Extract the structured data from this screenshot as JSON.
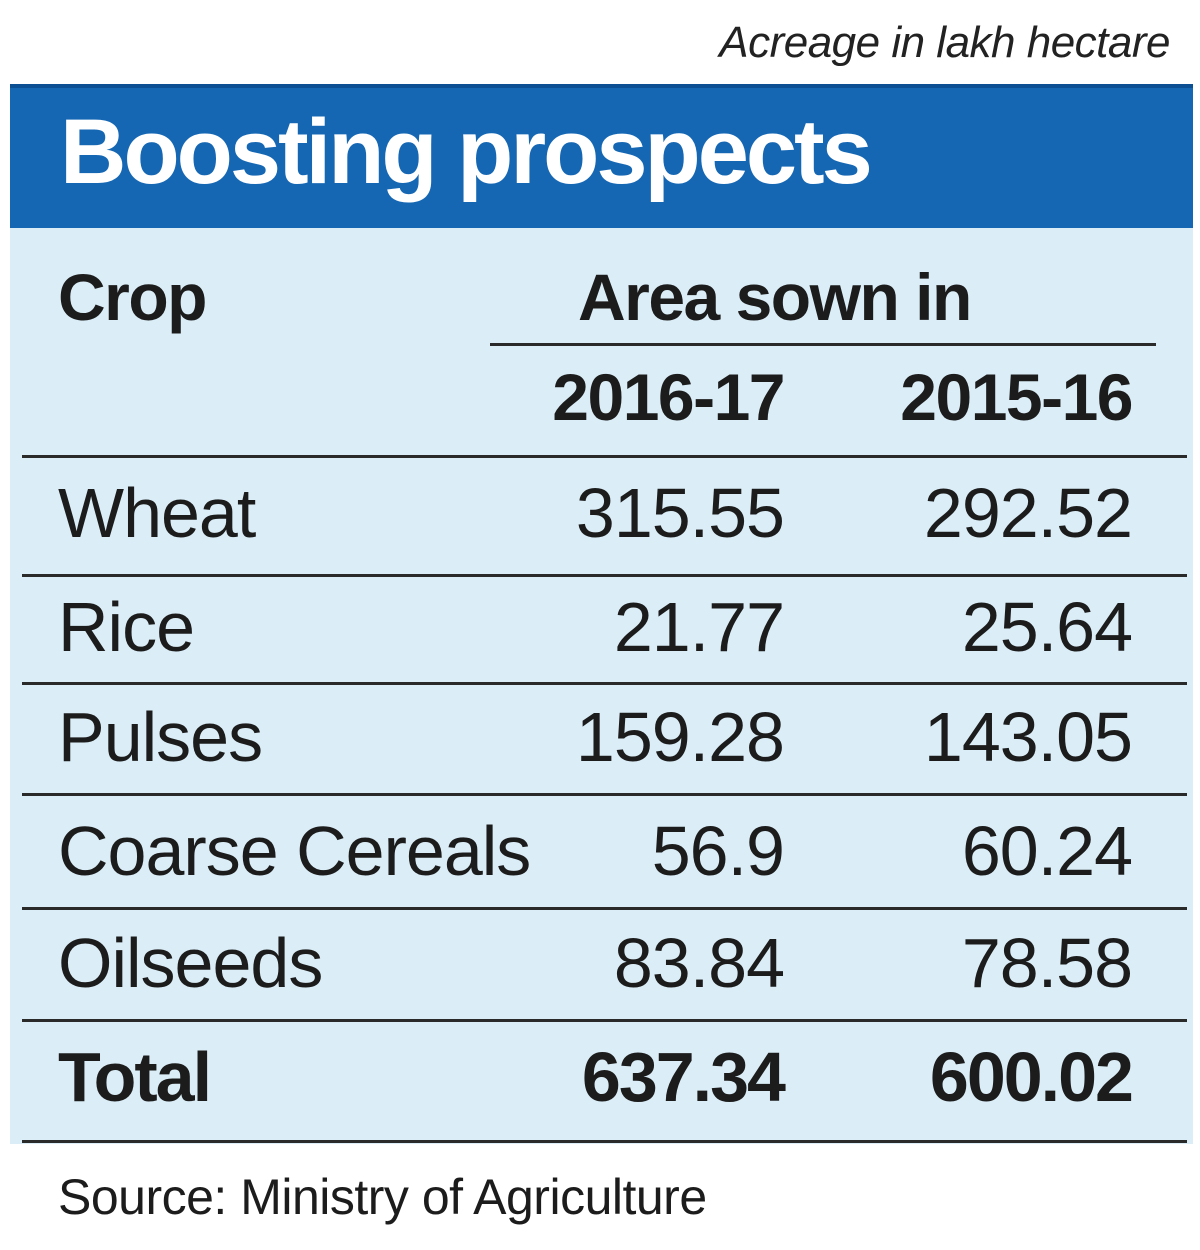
{
  "unit_note": "Acreage in lakh hectare",
  "title": "Boosting prospects",
  "header": {
    "crop": "Crop",
    "area": "Area sown in",
    "year1": "2016-17",
    "year2": "2015-16"
  },
  "rows": [
    {
      "crop": "Wheat",
      "v2016_17": "315.55",
      "v2015_16": "292.52"
    },
    {
      "crop": "Rice",
      "v2016_17": "21.77",
      "v2015_16": "25.64"
    },
    {
      "crop": "Pulses",
      "v2016_17": "159.28",
      "v2015_16": "143.05"
    },
    {
      "crop": "Coarse Cereals",
      "v2016_17": "56.9",
      "v2015_16": "60.24"
    },
    {
      "crop": "Oilseeds",
      "v2016_17": "83.84",
      "v2015_16": "78.58"
    },
    {
      "crop": "Total",
      "v2016_17": "637.34",
      "v2015_16": "600.02"
    }
  ],
  "source": "Source: Ministry of Agriculture",
  "colors": {
    "title_bar": "#1567b4",
    "panel": "#dbeef8",
    "text": "#1c1c1c"
  },
  "chart_data": {
    "type": "table",
    "title": "Boosting prospects",
    "unit": "Acreage in lakh hectare",
    "columns": [
      "Crop",
      "2016-17",
      "2015-16"
    ],
    "categories": [
      "Wheat",
      "Rice",
      "Pulses",
      "Coarse Cereals",
      "Oilseeds",
      "Total"
    ],
    "series": [
      {
        "name": "2016-17",
        "values": [
          315.55,
          21.77,
          159.28,
          56.9,
          83.84,
          637.34
        ]
      },
      {
        "name": "2015-16",
        "values": [
          292.52,
          25.64,
          143.05,
          60.24,
          78.58,
          600.02
        ]
      }
    ],
    "source": "Source: Ministry of Agriculture"
  }
}
